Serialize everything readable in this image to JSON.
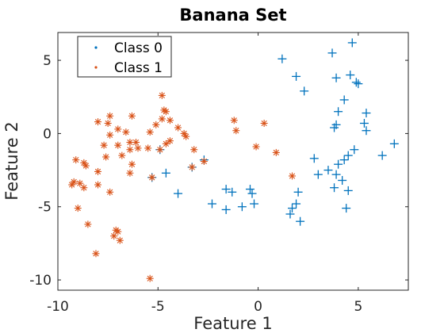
{
  "chart_data": {
    "type": "scatter",
    "title": "Banana Set",
    "xlabel": "Feature 1",
    "ylabel": "Feature 2",
    "xlim": [
      -10,
      7.5
    ],
    "ylim": [
      -10.7,
      6.9
    ],
    "xticks": [
      -10,
      -5,
      0,
      5
    ],
    "yticks": [
      5,
      0,
      -5,
      -10
    ],
    "grid": false,
    "legend_placement": "top-left",
    "series": [
      {
        "name": "Class 0",
        "color": "#0072BD",
        "marker": "plus",
        "points": [
          [
            1.2,
            5.1
          ],
          [
            3.7,
            5.5
          ],
          [
            4.7,
            6.2
          ],
          [
            1.9,
            3.9
          ],
          [
            2.3,
            2.9
          ],
          [
            3.9,
            3.8
          ],
          [
            4.6,
            4.0
          ],
          [
            4.9,
            3.5
          ],
          [
            5.0,
            3.4
          ],
          [
            4.3,
            2.3
          ],
          [
            4.0,
            1.5
          ],
          [
            5.4,
            1.4
          ],
          [
            3.9,
            0.6
          ],
          [
            3.8,
            0.4
          ],
          [
            5.3,
            0.7
          ],
          [
            5.4,
            0.2
          ],
          [
            6.8,
            -0.7
          ],
          [
            6.2,
            -1.5
          ],
          [
            4.8,
            -1.1
          ],
          [
            4.5,
            -1.5
          ],
          [
            4.3,
            -1.8
          ],
          [
            4.0,
            -2.1
          ],
          [
            2.8,
            -1.7
          ],
          [
            3.5,
            -2.5
          ],
          [
            3.0,
            -2.8
          ],
          [
            3.9,
            -2.8
          ],
          [
            4.2,
            -3.2
          ],
          [
            3.8,
            -3.7
          ],
          [
            4.5,
            -3.9
          ],
          [
            2.0,
            -4.0
          ],
          [
            1.9,
            -4.8
          ],
          [
            1.7,
            -5.1
          ],
          [
            1.6,
            -5.5
          ],
          [
            2.1,
            -6.0
          ],
          [
            4.4,
            -5.1
          ],
          [
            -0.4,
            -3.8
          ],
          [
            -0.3,
            -4.1
          ],
          [
            -0.2,
            -4.8
          ],
          [
            -0.8,
            -5.0
          ],
          [
            -1.6,
            -3.8
          ],
          [
            -1.3,
            -4.0
          ],
          [
            -1.6,
            -5.2
          ],
          [
            -2.3,
            -4.8
          ],
          [
            -4.0,
            -4.1
          ],
          [
            -2.7,
            -1.8
          ],
          [
            -3.3,
            -2.3
          ],
          [
            -4.6,
            -2.7
          ],
          [
            -5.3,
            -3.0
          ],
          [
            -4.9,
            -1.1
          ]
        ]
      },
      {
        "name": "Class 1",
        "color": "#D95319",
        "marker": "asterisk",
        "points": [
          [
            -9.1,
            -1.8
          ],
          [
            -8.7,
            -2.0
          ],
          [
            -8.6,
            -2.2
          ],
          [
            -8.0,
            -2.6
          ],
          [
            -9.3,
            -3.5
          ],
          [
            -9.2,
            -3.3
          ],
          [
            -8.9,
            -3.4
          ],
          [
            -8.7,
            -3.7
          ],
          [
            -8.0,
            -3.5
          ],
          [
            -7.4,
            -4.0
          ],
          [
            -9.0,
            -5.1
          ],
          [
            -8.5,
            -6.2
          ],
          [
            -7.1,
            -6.6
          ],
          [
            -7.0,
            -6.7
          ],
          [
            -7.2,
            -7.0
          ],
          [
            -6.9,
            -7.3
          ],
          [
            -8.1,
            -8.2
          ],
          [
            -5.4,
            -9.9
          ],
          [
            -8.0,
            0.8
          ],
          [
            -7.4,
            1.2
          ],
          [
            -7.5,
            0.7
          ],
          [
            -7.0,
            0.3
          ],
          [
            -7.4,
            -0.1
          ],
          [
            -7.7,
            -0.8
          ],
          [
            -7.0,
            -0.8
          ],
          [
            -7.6,
            -1.6
          ],
          [
            -6.8,
            -1.5
          ],
          [
            -6.3,
            1.2
          ],
          [
            -6.6,
            0.1
          ],
          [
            -6.4,
            -0.6
          ],
          [
            -6.1,
            -0.6
          ],
          [
            -6.3,
            -2.1
          ],
          [
            -6.4,
            -2.7
          ],
          [
            -6.0,
            -1.0
          ],
          [
            -6.4,
            -1.1
          ],
          [
            -5.4,
            0.1
          ],
          [
            -5.5,
            -1.0
          ],
          [
            -5.1,
            0.6
          ],
          [
            -4.8,
            1.0
          ],
          [
            -4.7,
            1.6
          ],
          [
            -4.6,
            1.5
          ],
          [
            -4.4,
            0.9
          ],
          [
            -4.6,
            -0.7
          ],
          [
            -4.8,
            2.6
          ],
          [
            -4.4,
            -0.5
          ],
          [
            -3.6,
            -0.2
          ],
          [
            -3.2,
            -1.1
          ],
          [
            -3.7,
            0.0
          ],
          [
            -4.0,
            0.4
          ],
          [
            -2.7,
            -1.9
          ],
          [
            -1.2,
            0.9
          ],
          [
            -0.1,
            -0.9
          ],
          [
            -1.1,
            0.2
          ],
          [
            0.3,
            0.7
          ],
          [
            0.9,
            -1.3
          ],
          [
            1.7,
            -2.9
          ],
          [
            -5.3,
            -3.0
          ],
          [
            -4.9,
            -1.1
          ],
          [
            -3.3,
            -2.3
          ]
        ]
      }
    ]
  }
}
